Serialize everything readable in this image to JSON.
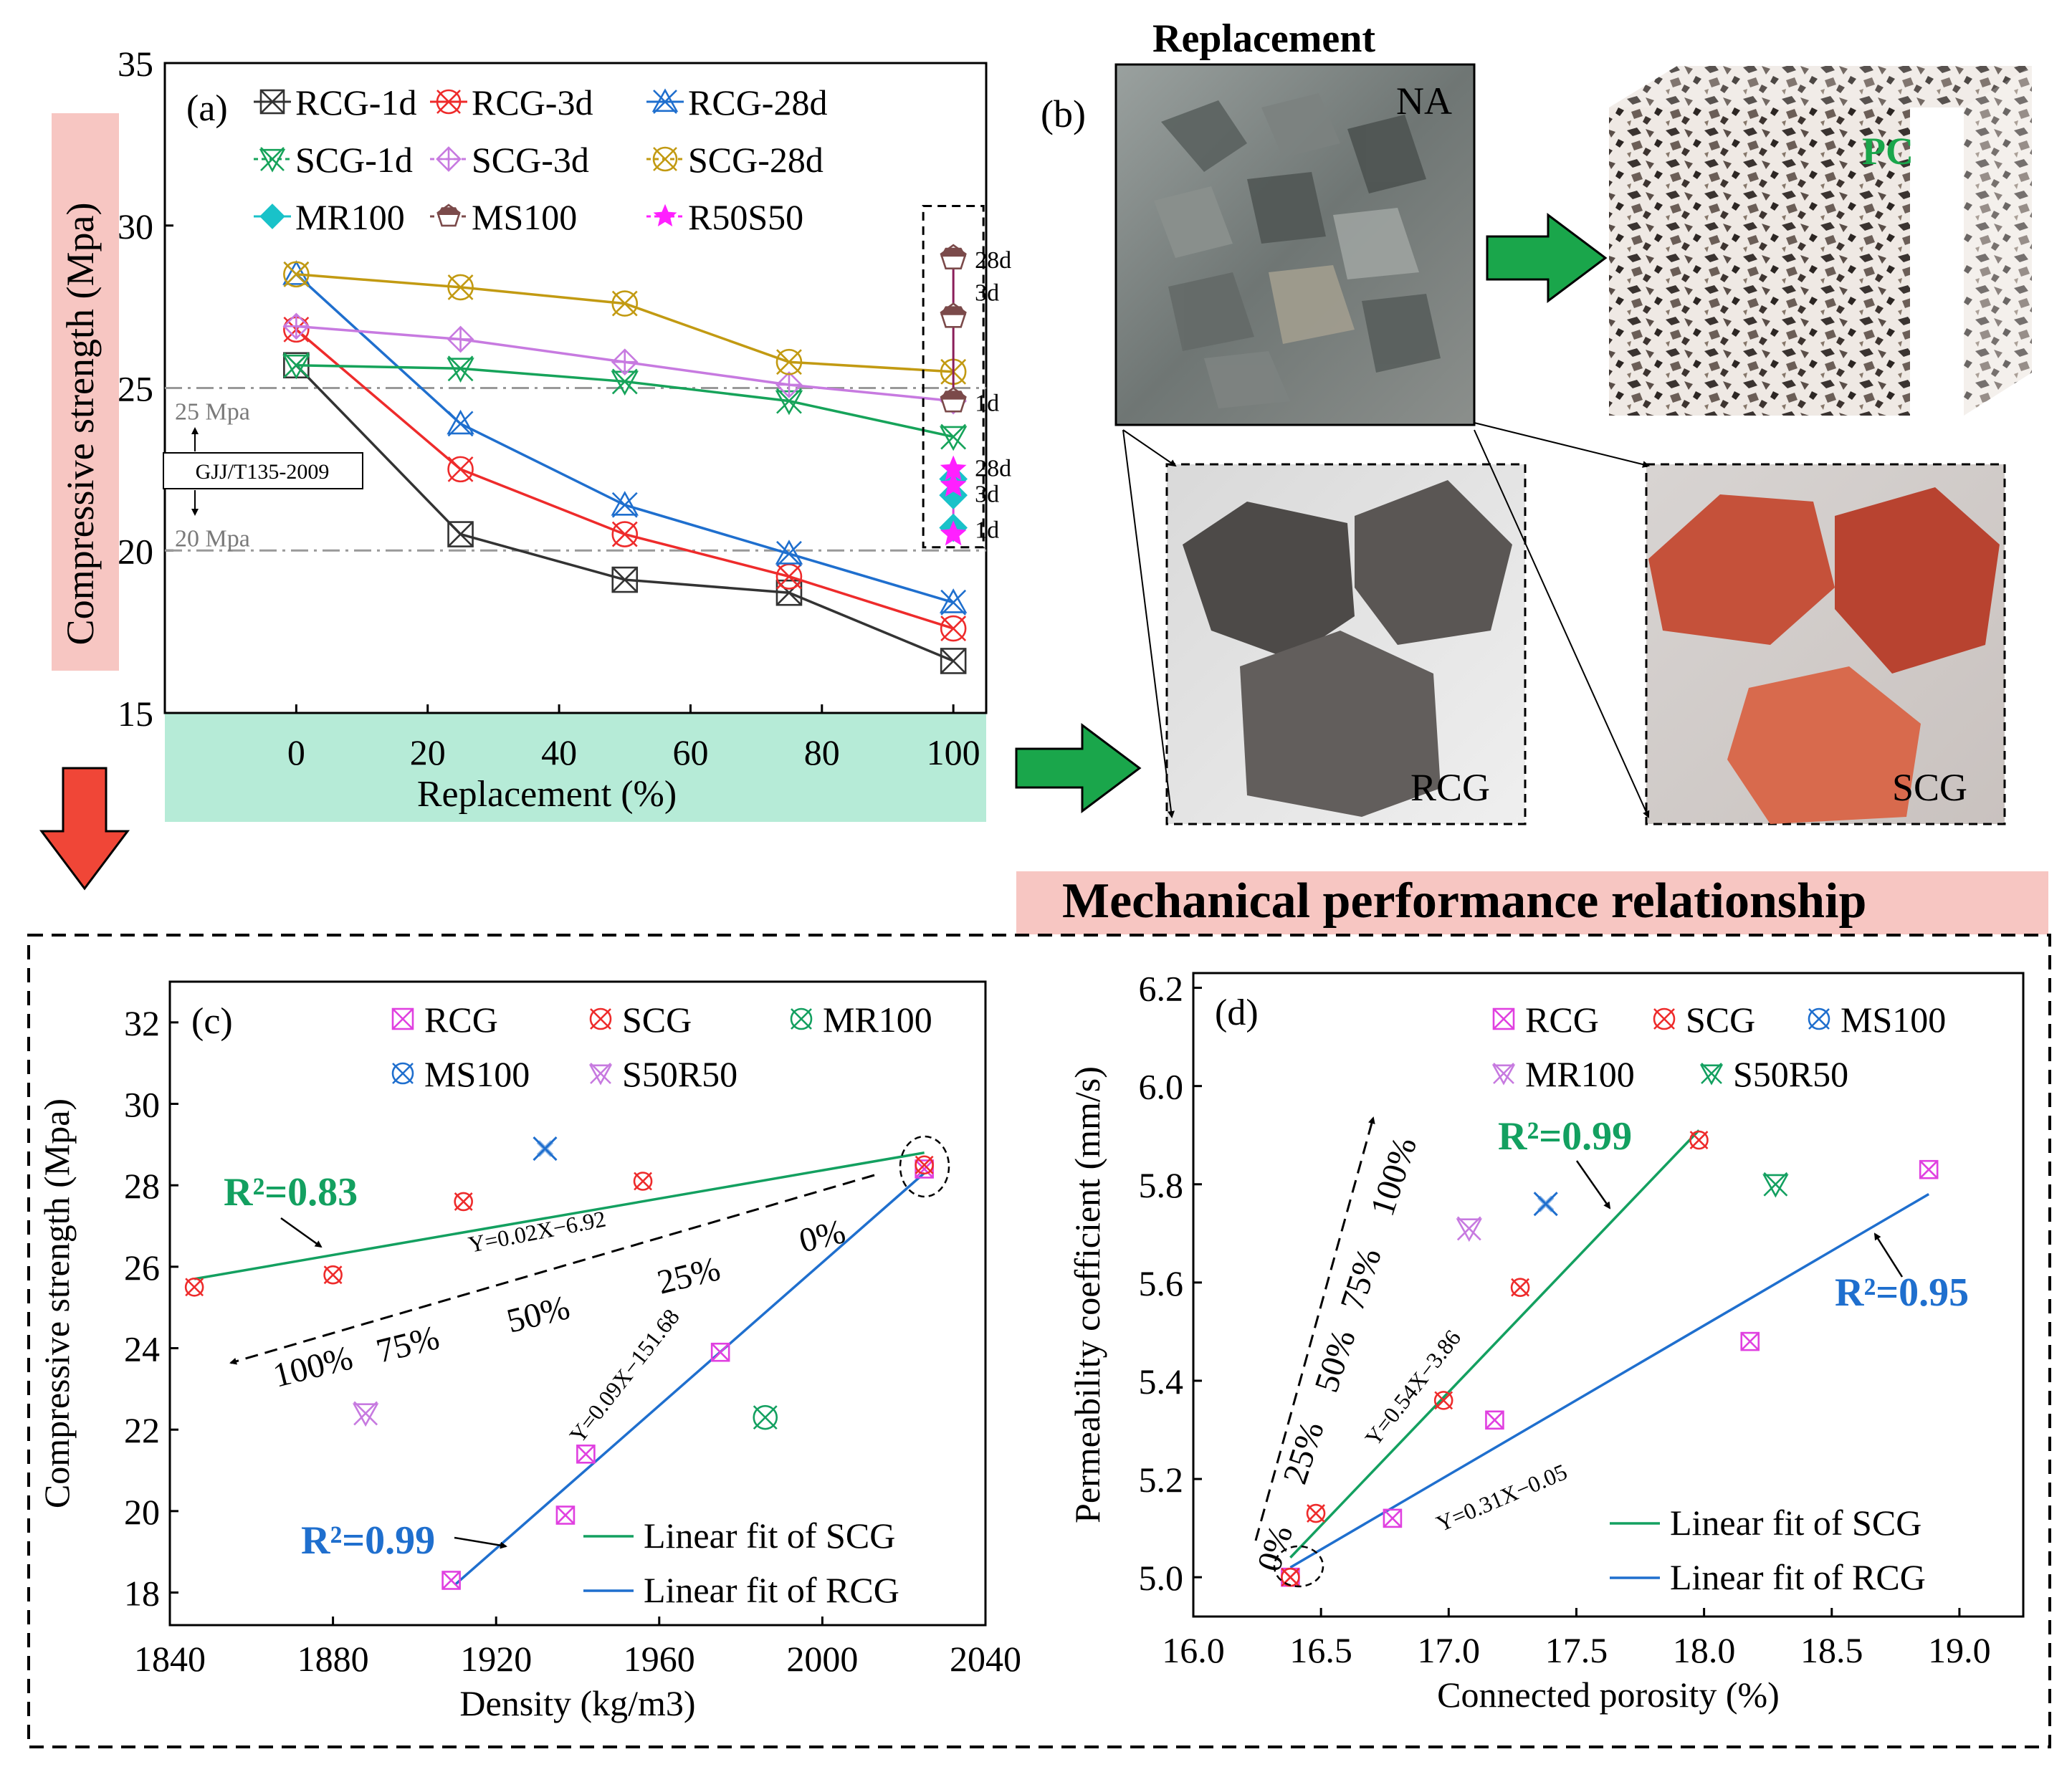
{
  "panel_b": {
    "label": "(b)",
    "title": "Replacement",
    "na_label": "NA",
    "pc_label": "PC",
    "rcg_label": "RCG",
    "scg_label": "SCG"
  },
  "banner": {
    "text": "Mechanical performance relationship"
  },
  "colors": {
    "RCG-1d": "#333333",
    "RCG-3d": "#ee2b2b",
    "RCG-28d": "#1f6fce",
    "SCG-1d": "#16a35a",
    "SCG-3d": "#c77ae0",
    "SCG-28d": "#c29a12",
    "MR100": "#19c2c9",
    "MS100": "#7b4a4a",
    "R50S50": "#ff20ff",
    "fit_scg": "#13a060",
    "fit_rcg": "#1f6fce"
  },
  "chart_data": [
    {
      "id": "a",
      "type": "line",
      "panel_label": "(a)",
      "xlabel": "Replacement (%)",
      "ylabel": "Compressive strength (Mpa)",
      "xlim": [
        -20,
        105
      ],
      "ylim": [
        15,
        35
      ],
      "xticks": [
        0,
        20,
        40,
        60,
        80,
        100
      ],
      "yticks": [
        15,
        20,
        25,
        30,
        35
      ],
      "x": [
        0,
        25,
        50,
        75,
        100
      ],
      "series": [
        {
          "name": "RCG-1d",
          "values": [
            25.7,
            20.5,
            19.1,
            18.7,
            16.6
          ]
        },
        {
          "name": "RCG-3d",
          "values": [
            26.8,
            22.5,
            20.5,
            19.2,
            17.6
          ]
        },
        {
          "name": "RCG-28d",
          "values": [
            28.5,
            23.9,
            21.4,
            19.9,
            18.4
          ]
        },
        {
          "name": "SCG-1d",
          "values": [
            25.7,
            25.6,
            25.2,
            24.6,
            23.5
          ]
        },
        {
          "name": "SCG-3d",
          "values": [
            26.9,
            26.5,
            25.8,
            25.1,
            24.6
          ]
        },
        {
          "name": "SCG-28d",
          "values": [
            28.5,
            28.1,
            27.6,
            25.8,
            25.5
          ]
        }
      ],
      "point_series": [
        {
          "name": "MR100",
          "x": 100,
          "values": [
            20.7,
            21.7,
            22.2
          ]
        },
        {
          "name": "MS100",
          "x": 100,
          "values": [
            24.6,
            27.2,
            29.0
          ]
        },
        {
          "name": "R50S50",
          "x": 100,
          "values": [
            20.5,
            22.0,
            22.5
          ]
        }
      ],
      "age_labels_upper": [
        "28d",
        "3d",
        "1d"
      ],
      "age_labels_lower": [
        "28d",
        "3d",
        "1d"
      ],
      "thresholds": [
        {
          "value": 25,
          "label": "25 Mpa"
        },
        {
          "value": 20,
          "label": "20 Mpa"
        }
      ],
      "standard_label": "GJJ/T135-2009"
    },
    {
      "id": "c",
      "type": "scatter",
      "panel_label": "(c)",
      "xlabel": "Density (kg/m3)",
      "ylabel": "Compressive strength (Mpa)",
      "xlim": [
        1840,
        2040
      ],
      "ylim": [
        17.2,
        33
      ],
      "xticks": [
        1840,
        1880,
        1920,
        1960,
        2000,
        2040
      ],
      "yticks": [
        18,
        20,
        22,
        24,
        26,
        28,
        30,
        32
      ],
      "series": [
        {
          "name": "RCG",
          "points": [
            [
              1909,
              18.3
            ],
            [
              1937,
              19.9
            ],
            [
              1942,
              21.4
            ],
            [
              1975,
              23.9
            ],
            [
              2025,
              28.4
            ]
          ]
        },
        {
          "name": "SCG",
          "points": [
            [
              1846,
              25.5
            ],
            [
              1880,
              25.8
            ],
            [
              1912,
              27.6
            ],
            [
              1956,
              28.1
            ],
            [
              2025,
              28.5
            ]
          ]
        },
        {
          "name": "MR100",
          "points": [
            [
              1986,
              22.3
            ]
          ]
        },
        {
          "name": "MS100",
          "points": [
            [
              1932,
              28.9
            ]
          ]
        },
        {
          "name": "S50R50",
          "points": [
            [
              1888,
              22.4
            ]
          ]
        }
      ],
      "fits": [
        {
          "name": "Linear fit of SCG",
          "from": [
            1846,
            25.7
          ],
          "to": [
            2025,
            28.8
          ],
          "equation": "Y=0.02X−6.92",
          "r2": "R²=0.83"
        },
        {
          "name": "Linear fit of RCG",
          "from": [
            1910,
            18.2
          ],
          "to": [
            2025,
            28.3
          ],
          "equation": "Y=0.09X−151.68",
          "r2": "R²=0.99"
        }
      ],
      "direction_labels": [
        "100%",
        "75%",
        "50%",
        "25%",
        "0%"
      ]
    },
    {
      "id": "d",
      "type": "scatter",
      "panel_label": "(d)",
      "xlabel": "Connected porosity (%)",
      "ylabel": "Permeability coefficient (mm/s)",
      "xlim": [
        16.0,
        19.25
      ],
      "ylim": [
        4.92,
        6.23
      ],
      "xticks": [
        16.0,
        16.5,
        17.0,
        17.5,
        18.0,
        18.5,
        19.0
      ],
      "yticks": [
        5.0,
        5.2,
        5.4,
        5.6,
        5.8,
        6.0,
        6.2
      ],
      "series": [
        {
          "name": "RCG",
          "points": [
            [
              16.38,
              5.0
            ],
            [
              16.78,
              5.12
            ],
            [
              17.18,
              5.32
            ],
            [
              18.18,
              5.48
            ],
            [
              18.88,
              5.83
            ]
          ]
        },
        {
          "name": "SCG",
          "points": [
            [
              16.38,
              5.0
            ],
            [
              16.48,
              5.13
            ],
            [
              16.98,
              5.36
            ],
            [
              17.28,
              5.59
            ],
            [
              17.98,
              5.89
            ]
          ]
        },
        {
          "name": "MS100",
          "points": [
            [
              17.38,
              5.76
            ]
          ]
        },
        {
          "name": "MR100",
          "points": [
            [
              17.08,
              5.71
            ]
          ]
        },
        {
          "name": "S50R50",
          "points": [
            [
              18.28,
              5.8
            ]
          ]
        }
      ],
      "fits": [
        {
          "name": "Linear fit of SCG",
          "from": [
            16.38,
            5.04
          ],
          "to": [
            17.98,
            5.91
          ],
          "equation": "Y=0.54X−3.86",
          "r2": "R²=0.99"
        },
        {
          "name": "Linear fit of RCG",
          "from": [
            16.38,
            5.02
          ],
          "to": [
            18.88,
            5.78
          ],
          "equation": "Y=0.31X−0.05",
          "r2": "R²=0.95"
        }
      ],
      "direction_labels": [
        "0%",
        "25%",
        "50%",
        "75%",
        "100%"
      ]
    }
  ]
}
